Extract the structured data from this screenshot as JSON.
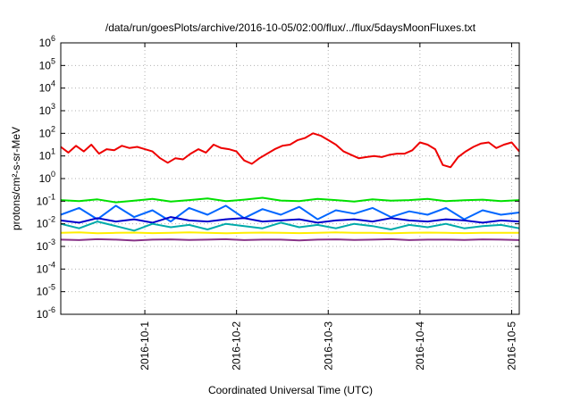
{
  "chart_data": {
    "type": "line",
    "title": "/data/run/goesPlots/archive/2016-10-05/02:00/flux/../flux/5daysMoonFluxes.txt",
    "xlabel": "Coordinated Universal Time (UTC)",
    "ylabel": "protons/cm²-s-sr-MeV",
    "yscale": "log",
    "ylim": [
      1e-06,
      1000000.0
    ],
    "xlim": [
      "2016-09-30 02:00",
      "2016-10-05 02:00"
    ],
    "y_ticks": [
      -6,
      -5,
      -4,
      -3,
      -2,
      -1,
      0,
      1,
      2,
      3,
      4,
      5,
      6
    ],
    "x_ticks": [
      "2016-10-1",
      "2016-10-2",
      "2016-10-3",
      "2016-10-4",
      "2016-10-5"
    ],
    "grid": true,
    "legend": "none",
    "series": [
      {
        "color": "#ee0000",
        "approx_log10_values": [
          1.4,
          1.15,
          1.45,
          1.2,
          1.5,
          1.1,
          1.3,
          1.25,
          1.45,
          1.35,
          1.4,
          1.3,
          1.2,
          0.9,
          0.7,
          0.9,
          0.85,
          1.1,
          1.3,
          1.15,
          1.5,
          1.35,
          1.3,
          1.2,
          0.8,
          0.65,
          0.9,
          1.1,
          1.3,
          1.45,
          1.5,
          1.7,
          1.8,
          2.0,
          1.9,
          1.7,
          1.5,
          1.2,
          1.05,
          0.9,
          0.95,
          1.0,
          0.95,
          1.05,
          1.1,
          1.1,
          1.25,
          1.6,
          1.5,
          1.3,
          0.6,
          0.5,
          0.95,
          1.2,
          1.4,
          1.55,
          1.6,
          1.35,
          1.5,
          1.6,
          1.2
        ]
      },
      {
        "color": "#00e000",
        "approx_log10_values": [
          -0.95,
          -1.0,
          -0.92,
          -1.05,
          -0.98,
          -0.9,
          -1.02,
          -0.95,
          -0.88,
          -1.0,
          -0.93,
          -0.85,
          -0.97,
          -1.0,
          -0.9,
          -0.95,
          -1.02,
          -0.92,
          -0.98,
          -0.95,
          -0.9,
          -1.0,
          -0.96,
          -0.93,
          -1.0,
          -0.95
        ]
      },
      {
        "color": "#0066ff",
        "approx_log10_values": [
          -1.6,
          -1.3,
          -1.8,
          -1.2,
          -1.7,
          -1.4,
          -1.9,
          -1.3,
          -1.6,
          -1.2,
          -1.75,
          -1.35,
          -1.6,
          -1.25,
          -1.8,
          -1.4,
          -1.55,
          -1.3,
          -1.7,
          -1.45,
          -1.6,
          -1.3,
          -1.8,
          -1.4,
          -1.6,
          -1.5
        ]
      },
      {
        "color": "#0000cc",
        "approx_log10_values": [
          -1.85,
          -1.95,
          -1.75,
          -1.9,
          -1.8,
          -1.95,
          -1.7,
          -1.85,
          -1.9,
          -1.8,
          -1.75,
          -1.9,
          -1.85,
          -1.8,
          -1.95,
          -1.85,
          -1.8,
          -1.9,
          -1.75,
          -1.85,
          -1.9,
          -1.8,
          -1.85,
          -1.95,
          -1.85,
          -1.9
        ]
      },
      {
        "color": "#00aaaa",
        "approx_log10_values": [
          -2.0,
          -2.2,
          -1.9,
          -2.1,
          -2.3,
          -2.0,
          -2.15,
          -2.05,
          -2.25,
          -2.0,
          -2.1,
          -2.2,
          -1.95,
          -2.15,
          -2.05,
          -2.2,
          -2.0,
          -2.1,
          -2.25,
          -2.05,
          -2.15,
          -2.0,
          -2.2,
          -2.1,
          -2.05,
          -2.2
        ]
      },
      {
        "color": "#ffee00",
        "approx_log10_values": [
          -2.4,
          -2.38,
          -2.42,
          -2.4,
          -2.39,
          -2.41,
          -2.4,
          -2.38,
          -2.4,
          -2.42,
          -2.4,
          -2.39,
          -2.4,
          -2.41,
          -2.4,
          -2.38,
          -2.4,
          -2.4,
          -2.42,
          -2.4,
          -2.39,
          -2.4,
          -2.41,
          -2.4,
          -2.4,
          -2.4
        ]
      },
      {
        "color": "#883388",
        "approx_log10_values": [
          -2.7,
          -2.72,
          -2.68,
          -2.7,
          -2.74,
          -2.7,
          -2.69,
          -2.71,
          -2.7,
          -2.68,
          -2.72,
          -2.7,
          -2.7,
          -2.73,
          -2.7,
          -2.69,
          -2.71,
          -2.7,
          -2.68,
          -2.72,
          -2.7,
          -2.7,
          -2.71,
          -2.69,
          -2.7,
          -2.72
        ]
      }
    ]
  }
}
